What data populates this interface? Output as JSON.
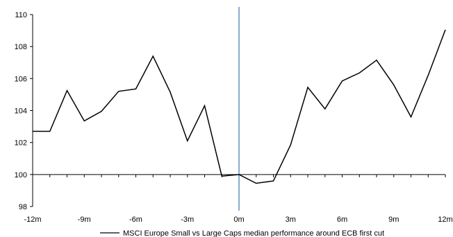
{
  "chart_data": {
    "type": "line",
    "x": [
      -12,
      -11,
      -10,
      -9,
      -8,
      -7,
      -6,
      -5,
      -4,
      -3,
      -2,
      -1,
      0,
      1,
      2,
      3,
      4,
      5,
      6,
      7,
      8,
      9,
      10,
      11,
      12
    ],
    "series": [
      {
        "name": "MSCI Europe Small vs Large Caps median performance around ECB first cut",
        "values": [
          102.7,
          102.7,
          105.25,
          103.35,
          103.95,
          105.2,
          105.35,
          107.4,
          105.15,
          102.1,
          104.3,
          99.9,
          100.0,
          99.45,
          99.6,
          101.85,
          105.45,
          104.1,
          105.85,
          106.35,
          107.15,
          105.6,
          103.6,
          106.2,
          109.05
        ]
      }
    ],
    "ylim": [
      98,
      110
    ],
    "yticks": [
      98,
      100,
      102,
      104,
      106,
      108,
      110
    ],
    "xlim": [
      -12,
      12
    ],
    "xticks": [
      -12,
      -9,
      -6,
      -3,
      0,
      3,
      6,
      9,
      12
    ],
    "xtick_labels": [
      "-12m",
      "-9m",
      "-6m",
      "-3m",
      "0m",
      "3m",
      "6m",
      "9m",
      "12m"
    ],
    "x_axis_at": 100,
    "vertical_marker_at": 0,
    "line_color": "#000000",
    "marker_color": "#4a7fb5",
    "grid": false,
    "legend_position": "bottom-center"
  }
}
